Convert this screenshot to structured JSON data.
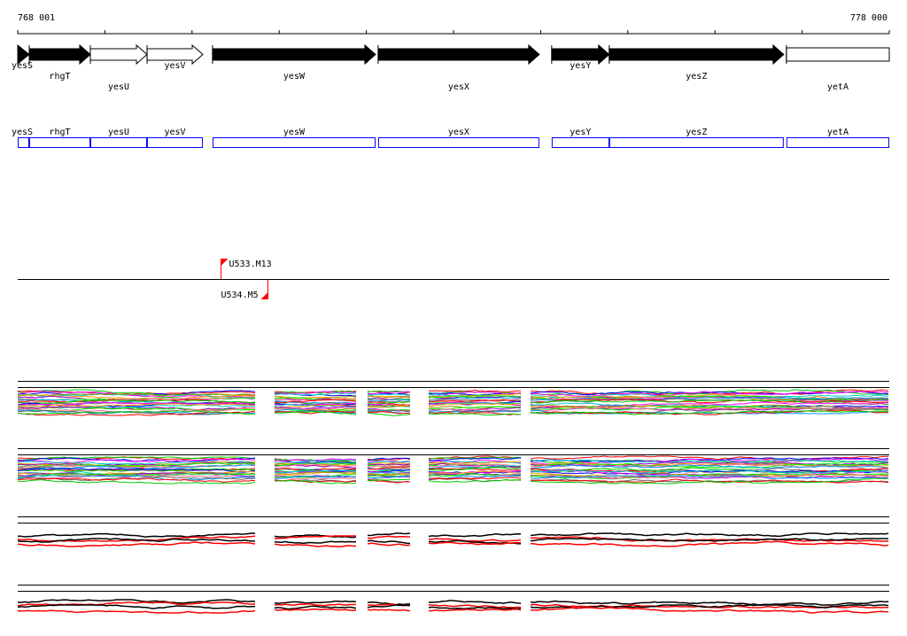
{
  "ruler": {
    "start_label": "768 001",
    "end_label": "778 000",
    "start": 768001,
    "end": 778000
  },
  "genes": [
    {
      "name": "yesS",
      "start": 768001,
      "end": 768133,
      "fill": "black",
      "row": 0
    },
    {
      "name": "rhgT",
      "start": 768133,
      "end": 768834,
      "fill": "black",
      "row": 1
    },
    {
      "name": "yesU",
      "start": 768834,
      "end": 769485,
      "fill": "white",
      "row": 2
    },
    {
      "name": "yesV",
      "start": 769485,
      "end": 770125,
      "fill": "white",
      "row": 0
    },
    {
      "name": "yesW",
      "start": 770236,
      "end": 772106,
      "fill": "black",
      "row": 1
    },
    {
      "name": "yesX",
      "start": 772136,
      "end": 773985,
      "fill": "black",
      "row": 2
    },
    {
      "name": "yesY",
      "start": 774127,
      "end": 774787,
      "fill": "black",
      "row": 0
    },
    {
      "name": "yesZ",
      "start": 774787,
      "end": 776789,
      "fill": "black",
      "row": 1
    },
    {
      "name": "yetA",
      "start": 776820,
      "end": 778000,
      "fill": "white",
      "row": 2,
      "clipped": true
    }
  ],
  "markers": [
    {
      "label": "U533.M13",
      "position": 770328,
      "side": "above"
    },
    {
      "label": "U534.M5",
      "position": 770866,
      "side": "below"
    }
  ],
  "colors": {
    "feature_box": "#0000ff",
    "marker": "#ff0000",
    "highlight_series": "#ff0000"
  },
  "tracks": [
    {
      "type": "multicolor-profile"
    },
    {
      "type": "multicolor-profile"
    },
    {
      "type": "black-red-profile"
    },
    {
      "type": "black-red-profile"
    }
  ]
}
